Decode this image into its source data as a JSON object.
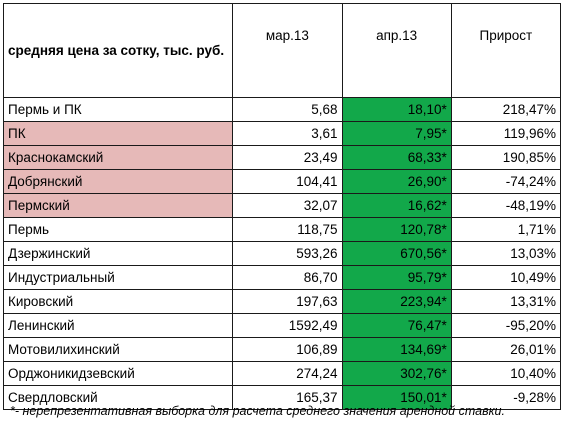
{
  "table": {
    "header": {
      "title": "средняя цена за сотку, тыс. руб.",
      "col_mar": "мар.13",
      "col_apr": "апр.13",
      "col_growth": "Прирост"
    },
    "rows": [
      {
        "name": "Пермь и ПК",
        "mar": "5,68",
        "apr": "18,10*",
        "growth": "218,47%",
        "highlight": false,
        "negative": false
      },
      {
        "name": "ПК",
        "mar": "3,61",
        "apr": "7,95*",
        "growth": "119,96%",
        "highlight": true,
        "negative": false
      },
      {
        "name": "Краснокамский",
        "mar": "23,49",
        "apr": "68,33*",
        "growth": "190,85%",
        "highlight": true,
        "negative": false
      },
      {
        "name": "Добрянский",
        "mar": "104,41",
        "apr": "26,90*",
        "growth": "-74,24%",
        "highlight": true,
        "negative": true
      },
      {
        "name": "Пермский",
        "mar": "32,07",
        "apr": "16,62*",
        "growth": "-48,19%",
        "highlight": true,
        "negative": true
      },
      {
        "name": "Пермь",
        "mar": "118,75",
        "apr": "120,78*",
        "growth": "1,71%",
        "highlight": false,
        "negative": false
      },
      {
        "name": "Дзержинский",
        "mar": "593,26",
        "apr": "670,56*",
        "growth": "13,03%",
        "highlight": false,
        "negative": false
      },
      {
        "name": "Индустриальный",
        "mar": "86,70",
        "apr": "95,79*",
        "growth": "10,49%",
        "highlight": false,
        "negative": false
      },
      {
        "name": "Кировский",
        "mar": "197,63",
        "apr": "223,94*",
        "growth": "13,31%",
        "highlight": false,
        "negative": false
      },
      {
        "name": "Ленинский",
        "mar": "1592,49",
        "apr": "76,47*",
        "growth": "-95,20%",
        "highlight": false,
        "negative": true
      },
      {
        "name": "Мотовилихинский",
        "mar": "106,89",
        "apr": "134,69*",
        "growth": "26,01%",
        "highlight": false,
        "negative": false
      },
      {
        "name": "Орджоникидзевский",
        "mar": "274,24",
        "apr": "302,76*",
        "growth": "10,40%",
        "highlight": false,
        "negative": false
      },
      {
        "name": "Свердловский",
        "mar": "165,37",
        "apr": "150,01*",
        "growth": "-9,28%",
        "highlight": false,
        "negative": true
      }
    ]
  },
  "colors": {
    "highlight_bg": "#e6b9b8",
    "apr_bg": "#12a84a",
    "negative_text": "#c0282a",
    "header_text": "#c0282a"
  },
  "footnote": "*- нерепрезентативная выборка для расчета среднего значения арендной ставки."
}
